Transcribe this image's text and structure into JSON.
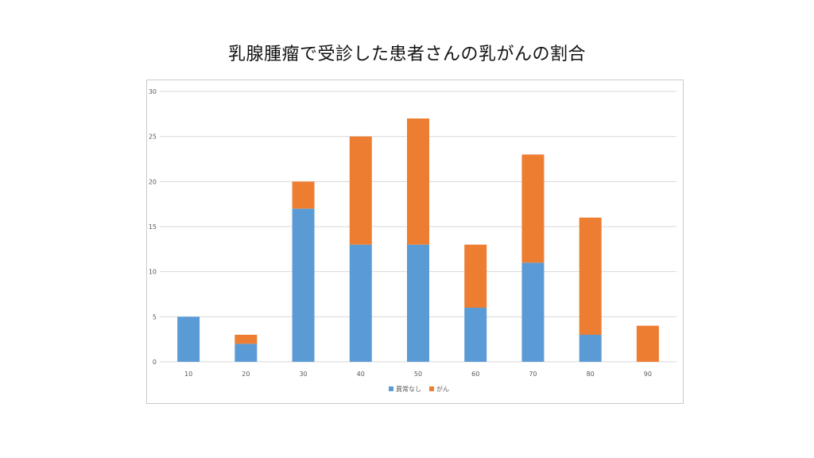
{
  "slide": {
    "title": "乳腺腫瘤で受診した患者さんの乳がんの割合"
  },
  "chart_data": {
    "type": "bar",
    "stacked": true,
    "categories": [
      "10",
      "20",
      "30",
      "40",
      "50",
      "60",
      "70",
      "80",
      "90"
    ],
    "series": [
      {
        "name": "異常なし",
        "color": "#5B9BD5",
        "values": [
          5,
          2,
          17,
          13,
          13,
          6,
          11,
          3,
          0
        ]
      },
      {
        "name": "がん",
        "color": "#ED7D31",
        "values": [
          0,
          1,
          3,
          12,
          14,
          7,
          12,
          13,
          4
        ]
      }
    ],
    "ylim": [
      0,
      30
    ],
    "yticks": [
      0,
      5,
      10,
      15,
      20,
      25,
      30
    ],
    "grid": true,
    "legend": "bottom"
  }
}
